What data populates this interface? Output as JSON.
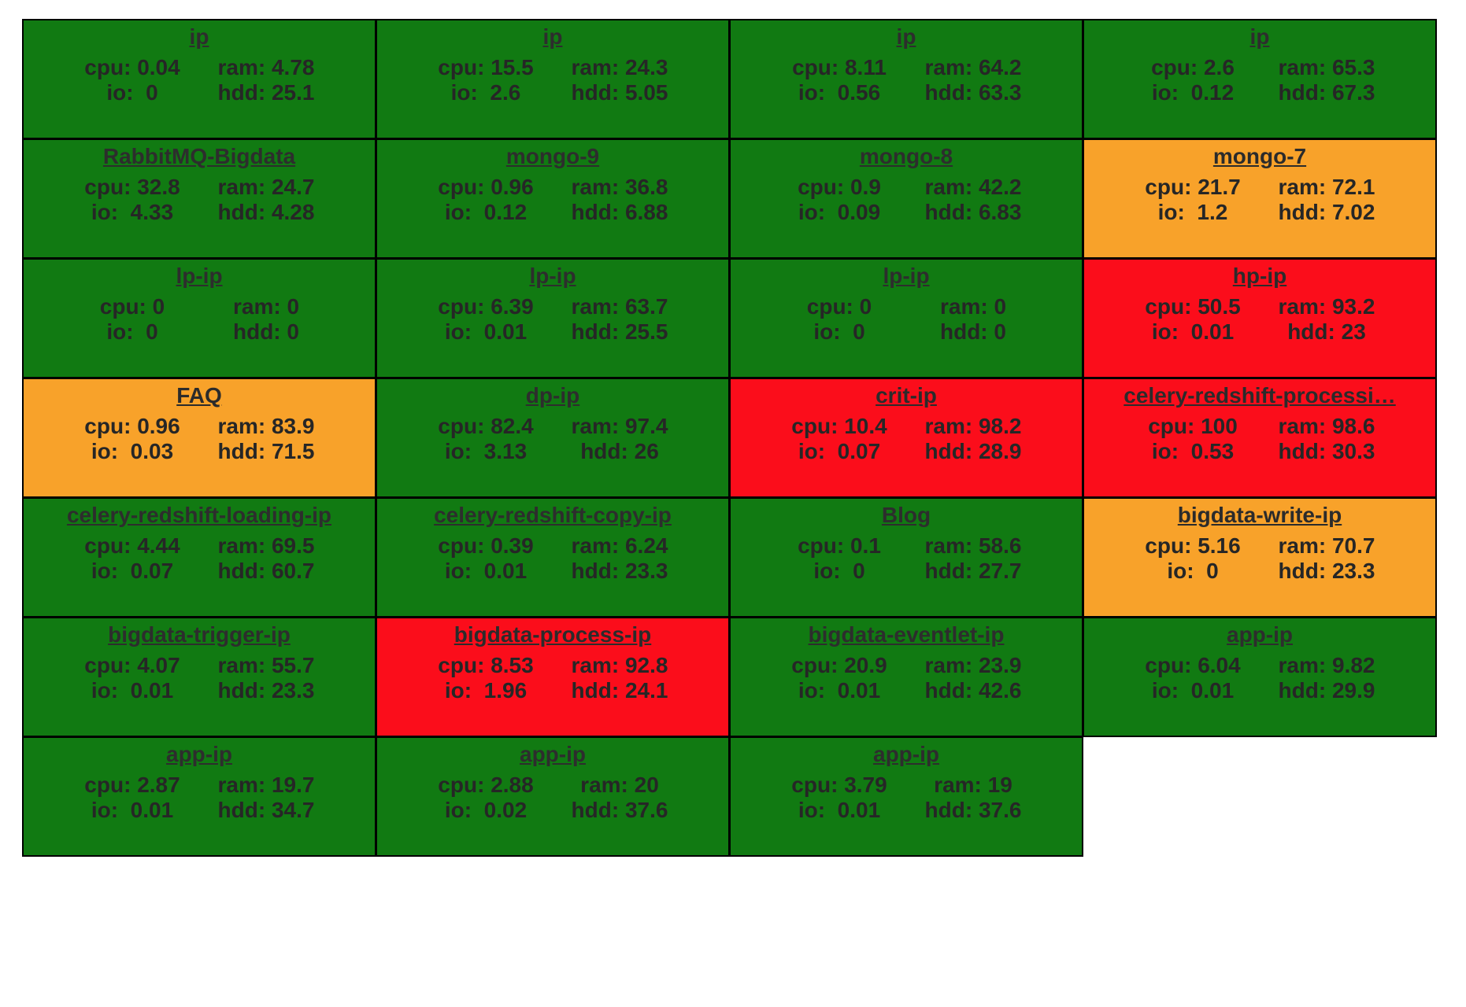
{
  "colors": {
    "green": "#117a12",
    "orange": "#f8a22a",
    "red": "#fb0d1b",
    "text": "#262626"
  },
  "labels": {
    "cpu": "cpu:",
    "ram": "ram:",
    "io": "io:",
    "hdd": "hdd:"
  },
  "hosts": [
    {
      "name": "ip",
      "status": "green",
      "cpu": "0.04",
      "ram": "4.78",
      "io": "0",
      "hdd": "25.1"
    },
    {
      "name": "ip",
      "status": "green",
      "cpu": "15.5",
      "ram": "24.3",
      "io": "2.6",
      "hdd": "5.05"
    },
    {
      "name": "ip",
      "status": "green",
      "cpu": "8.11",
      "ram": "64.2",
      "io": "0.56",
      "hdd": "63.3"
    },
    {
      "name": "ip",
      "status": "green",
      "cpu": "2.6",
      "ram": "65.3",
      "io": "0.12",
      "hdd": "67.3"
    },
    {
      "name": "RabbitMQ-Bigdata",
      "status": "green",
      "cpu": "32.8",
      "ram": "24.7",
      "io": "4.33",
      "hdd": "4.28"
    },
    {
      "name": "mongo-9",
      "status": "green",
      "cpu": "0.96",
      "ram": "36.8",
      "io": "0.12",
      "hdd": "6.88"
    },
    {
      "name": "mongo-8",
      "status": "green",
      "cpu": "0.9",
      "ram": "42.2",
      "io": "0.09",
      "hdd": "6.83"
    },
    {
      "name": "mongo-7",
      "status": "orange",
      "cpu": "21.7",
      "ram": "72.1",
      "io": "1.2",
      "hdd": "7.02"
    },
    {
      "name": "lp-ip",
      "status": "green",
      "cpu": "0",
      "ram": "0",
      "io": "0",
      "hdd": "0"
    },
    {
      "name": "lp-ip",
      "status": "green",
      "cpu": "6.39",
      "ram": "63.7",
      "io": "0.01",
      "hdd": "25.5"
    },
    {
      "name": "lp-ip",
      "status": "green",
      "cpu": "0",
      "ram": "0",
      "io": "0",
      "hdd": "0"
    },
    {
      "name": "hp-ip",
      "status": "red",
      "cpu": "50.5",
      "ram": "93.2",
      "io": "0.01",
      "hdd": "23"
    },
    {
      "name": "FAQ",
      "status": "orange",
      "cpu": "0.96",
      "ram": "83.9",
      "io": "0.03",
      "hdd": "71.5"
    },
    {
      "name": "dp-ip",
      "status": "green",
      "cpu": "82.4",
      "ram": "97.4",
      "io": "3.13",
      "hdd": "26"
    },
    {
      "name": "crit-ip",
      "status": "red",
      "cpu": "10.4",
      "ram": "98.2",
      "io": "0.07",
      "hdd": "28.9"
    },
    {
      "name": "celery-redshift-processi…",
      "status": "red",
      "cpu": "100",
      "ram": "98.6",
      "io": "0.53",
      "hdd": "30.3"
    },
    {
      "name": "celery-redshift-loading-ip",
      "status": "green",
      "cpu": "4.44",
      "ram": "69.5",
      "io": "0.07",
      "hdd": "60.7"
    },
    {
      "name": "celery-redshift-copy-ip",
      "status": "green",
      "cpu": "0.39",
      "ram": "6.24",
      "io": "0.01",
      "hdd": "23.3"
    },
    {
      "name": "Blog",
      "status": "green",
      "cpu": "0.1",
      "ram": "58.6",
      "io": "0",
      "hdd": "27.7"
    },
    {
      "name": "bigdata-write-ip",
      "status": "orange",
      "cpu": "5.16",
      "ram": "70.7",
      "io": "0",
      "hdd": "23.3"
    },
    {
      "name": "bigdata-trigger-ip",
      "status": "green",
      "cpu": "4.07",
      "ram": "55.7",
      "io": "0.01",
      "hdd": "23.3"
    },
    {
      "name": "bigdata-process-ip",
      "status": "red",
      "cpu": "8.53",
      "ram": "92.8",
      "io": "1.96",
      "hdd": "24.1"
    },
    {
      "name": "bigdata-eventlet-ip",
      "status": "green",
      "cpu": "20.9",
      "ram": "23.9",
      "io": "0.01",
      "hdd": "42.6"
    },
    {
      "name": "app-ip",
      "status": "green",
      "cpu": "6.04",
      "ram": "9.82",
      "io": "0.01",
      "hdd": "29.9"
    },
    {
      "name": "app-ip",
      "status": "green",
      "cpu": "2.87",
      "ram": "19.7",
      "io": "0.01",
      "hdd": "34.7"
    },
    {
      "name": "app-ip",
      "status": "green",
      "cpu": "2.88",
      "ram": "20",
      "io": "0.02",
      "hdd": "37.6"
    },
    {
      "name": "app-ip",
      "status": "green",
      "cpu": "3.79",
      "ram": "19",
      "io": "0.01",
      "hdd": "37.6"
    }
  ]
}
